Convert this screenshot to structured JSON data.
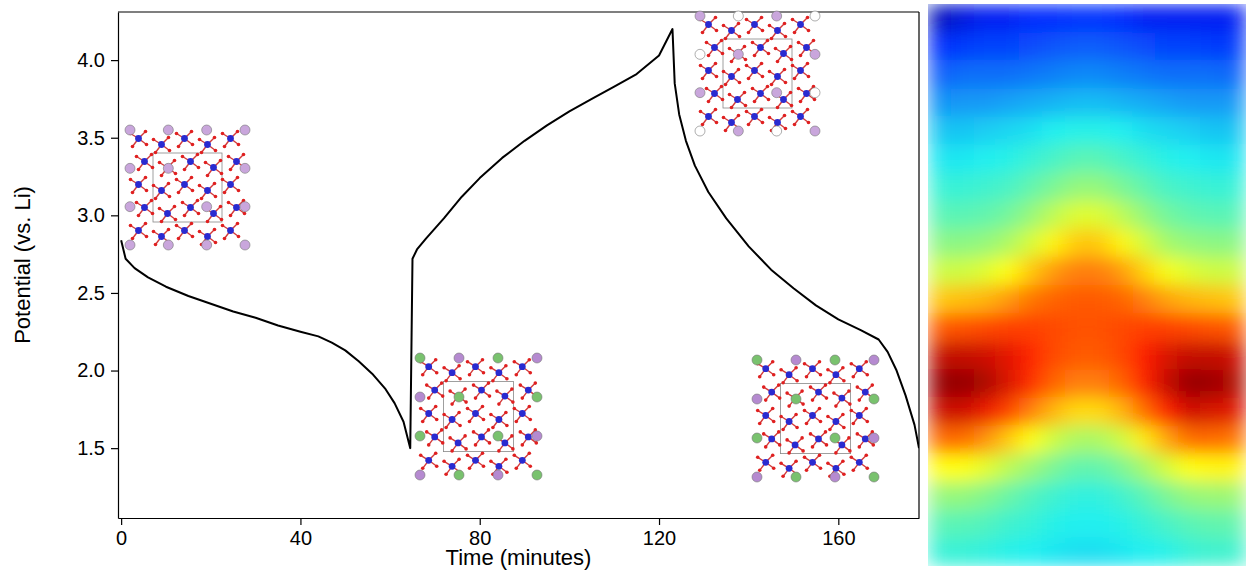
{
  "chart_data": [
    {
      "type": "line",
      "x_label": "Time (minutes)",
      "y_label": "Potential (vs. Li)",
      "x": [
        0,
        1,
        3,
        6,
        10,
        15,
        20,
        25,
        30,
        35,
        40,
        44,
        47,
        50,
        53,
        56,
        59,
        61,
        63,
        64.5,
        65,
        66,
        68,
        72,
        76,
        80,
        85,
        90,
        95,
        100,
        105,
        110,
        115,
        120,
        123,
        123.5,
        124.5,
        126,
        128,
        131,
        135,
        140,
        145,
        150,
        155,
        160,
        165,
        169,
        171,
        173,
        175,
        177,
        178
      ],
      "series": [
        {
          "color": "#000000",
          "values": [
            2.84,
            2.72,
            2.66,
            2.6,
            2.54,
            2.48,
            2.43,
            2.38,
            2.34,
            2.29,
            2.25,
            2.22,
            2.18,
            2.13,
            2.06,
            1.98,
            1.88,
            1.79,
            1.67,
            1.5,
            2.72,
            2.78,
            2.85,
            2.98,
            3.12,
            3.24,
            3.37,
            3.48,
            3.58,
            3.67,
            3.75,
            3.83,
            3.91,
            4.03,
            4.2,
            3.85,
            3.65,
            3.48,
            3.32,
            3.15,
            2.98,
            2.8,
            2.65,
            2.53,
            2.42,
            2.33,
            2.26,
            2.2,
            2.12,
            2.0,
            1.84,
            1.65,
            1.5
          ]
        }
      ],
      "xlim": [
        -0.7,
        178
      ],
      "xticks": [
        0,
        40,
        80,
        120,
        160
      ],
      "ylim": [
        1.05,
        4.31
      ],
      "yticks": [
        1.5,
        {
          "value": 2.0,
          "label": "2.0"
        },
        2.5,
        {
          "value": 3.0,
          "label": "3.0"
        },
        3.5,
        {
          "value": 4.0,
          "label": "4.0"
        }
      ]
    },
    {
      "type": "heatmap",
      "tick_labels": false,
      "zlim": [
        0,
        10
      ],
      "cells": [
        [
          0.5,
          0.8,
          1,
          1,
          1.2,
          1.2,
          1.3,
          1.3,
          1.2,
          1,
          1,
          1,
          1,
          1
        ],
        [
          1.2,
          1.4,
          1.5,
          1.5,
          1.6,
          1.7,
          1.8,
          1.8,
          1.7,
          1.6,
          1.5,
          1.5,
          1.4,
          1.4
        ],
        [
          1.8,
          2,
          2,
          2,
          2.1,
          2.2,
          2.3,
          2.3,
          2.2,
          2.1,
          2,
          2,
          2,
          1.9
        ],
        [
          2.4,
          2.5,
          2.5,
          2.6,
          2.7,
          2.8,
          2.9,
          2.9,
          2.8,
          2.7,
          2.6,
          2.5,
          2.5,
          2.5
        ],
        [
          3,
          3,
          3.1,
          3.2,
          3.3,
          3.5,
          3.6,
          3.6,
          3.5,
          3.3,
          3.2,
          3.1,
          3,
          3
        ],
        [
          3.4,
          3.4,
          3.5,
          3.6,
          3.8,
          4,
          4.2,
          4.2,
          4,
          3.8,
          3.6,
          3.5,
          3.4,
          3.4
        ],
        [
          3.8,
          3.8,
          3.9,
          4,
          4.3,
          4.6,
          4.9,
          4.9,
          4.6,
          4.3,
          4,
          3.9,
          3.8,
          3.8
        ],
        [
          4.2,
          4.2,
          4.3,
          4.5,
          4.9,
          5.4,
          5.8,
          5.8,
          5.4,
          4.9,
          4.5,
          4.3,
          4.2,
          4.2
        ],
        [
          4.8,
          4.8,
          4.9,
          5.2,
          5.7,
          6.3,
          6.8,
          6.8,
          6.3,
          5.7,
          5.1,
          4.9,
          4.8,
          4.8
        ],
        [
          5.6,
          5.6,
          5.8,
          6.2,
          6.8,
          7.3,
          7.6,
          7.6,
          7.3,
          6.7,
          6.1,
          5.8,
          5.6,
          5.6
        ],
        [
          6.8,
          6.9,
          7,
          7.3,
          7.7,
          7.9,
          8,
          8,
          7.9,
          7.6,
          7.2,
          7,
          6.9,
          6.8
        ],
        [
          8,
          8.1,
          8.2,
          8.3,
          8.3,
          8.2,
          8.1,
          8.1,
          8.2,
          8.3,
          8.3,
          8.2,
          8.1,
          8
        ],
        [
          9.3,
          9.3,
          9.2,
          9,
          8.6,
          8.2,
          8,
          8,
          8.2,
          8.7,
          9.1,
          9.3,
          9.3,
          9.2
        ],
        [
          9.8,
          9.8,
          9.6,
          9.1,
          8.5,
          7.9,
          7.6,
          7.6,
          7.9,
          8.6,
          9.3,
          9.8,
          9.7,
          9.5
        ],
        [
          9.2,
          9.2,
          8.9,
          8.3,
          7.6,
          7,
          6.6,
          6.6,
          7,
          7.8,
          8.7,
          9.2,
          9.1,
          9
        ],
        [
          7.8,
          7.8,
          7.4,
          6.8,
          6.2,
          5.6,
          5.2,
          5.2,
          5.6,
          6.4,
          7.2,
          7.8,
          7.8,
          7.7
        ],
        [
          6.2,
          6.2,
          5.9,
          5.4,
          5,
          4.6,
          4.3,
          4.3,
          4.6,
          5.1,
          5.7,
          6.2,
          6.3,
          6.3
        ],
        [
          4.9,
          4.9,
          4.7,
          4.4,
          4.1,
          3.9,
          3.7,
          3.7,
          3.9,
          4.2,
          4.6,
          4.9,
          5,
          5
        ],
        [
          4.2,
          4.2,
          4.1,
          3.9,
          3.8,
          3.6,
          3.5,
          3.5,
          3.6,
          3.8,
          4,
          4.2,
          4.3,
          4.3
        ],
        [
          3.8,
          3.8,
          3.7,
          3.6,
          3.5,
          3.4,
          3.3,
          3.3,
          3.4,
          3.5,
          3.6,
          3.8,
          3.9,
          3.9
        ]
      ]
    }
  ]
}
